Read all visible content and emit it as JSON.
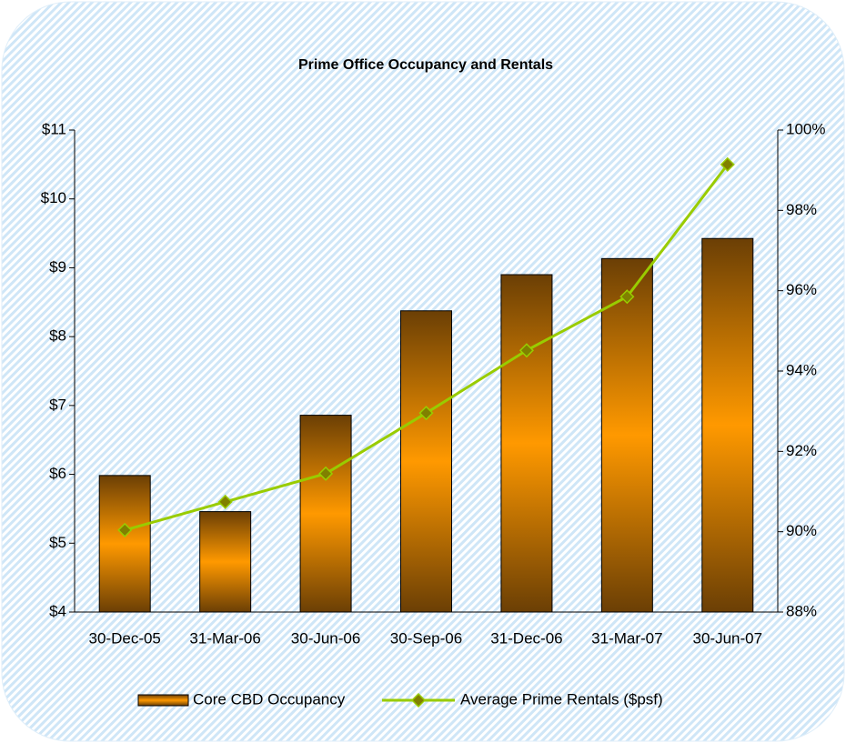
{
  "chart_data": {
    "type": "bar",
    "title": "Prime Office Occupancy and Rentals",
    "categories": [
      "30-Dec-05",
      "31-Mar-06",
      "30-Jun-06",
      "30-Sep-06",
      "31-Dec-06",
      "31-Mar-07",
      "30-Jun-07"
    ],
    "series": [
      {
        "name": "Core CBD Occupancy",
        "type": "bar",
        "axis": "y2",
        "color": "#ff9900",
        "values": [
          91.4,
          90.5,
          92.9,
          95.5,
          96.4,
          96.8,
          97.3
        ]
      },
      {
        "name": "Average Prime Rentals ($psf)",
        "type": "line",
        "axis": "y",
        "color": "#99cc00",
        "values": [
          5.19,
          5.6,
          6.01,
          6.89,
          7.8,
          8.58,
          10.5
        ]
      }
    ],
    "ylim": [
      4,
      11
    ],
    "yticks": [
      {
        "value": 4,
        "label": "$4"
      },
      {
        "value": 5,
        "label": "$5"
      },
      {
        "value": 6,
        "label": "$6"
      },
      {
        "value": 7,
        "label": "$7"
      },
      {
        "value": 8,
        "label": "$8"
      },
      {
        "value": 9,
        "label": "$9"
      },
      {
        "value": 10,
        "label": "$10"
      },
      {
        "value": 11,
        "label": "$11"
      }
    ],
    "y2lim": [
      88,
      100
    ],
    "y2ticks": [
      {
        "value": 88,
        "label": "88%"
      },
      {
        "value": 90,
        "label": "90%"
      },
      {
        "value": 92,
        "label": "92%"
      },
      {
        "value": 94,
        "label": "94%"
      },
      {
        "value": 96,
        "label": "96%"
      },
      {
        "value": 98,
        "label": "98%"
      },
      {
        "value": 100,
        "label": "100%"
      }
    ],
    "grid": false,
    "legend": "bottom"
  }
}
